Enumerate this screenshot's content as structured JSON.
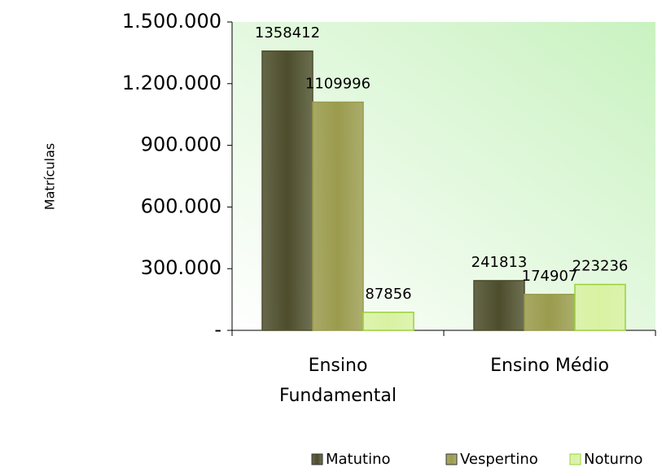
{
  "chart_data": {
    "type": "bar",
    "y_label": "Matrículas",
    "categories": [
      "Ensino Fundamental",
      "Ensino Médio"
    ],
    "series": [
      {
        "name": "Matutino",
        "color": "#4d4d2c",
        "values": [
          1358412,
          241813
        ]
      },
      {
        "name": "Vespertino",
        "color": "#9b9b4e",
        "values": [
          1109996,
          174907
        ]
      },
      {
        "name": "Noturno",
        "color": "#d9f2a2",
        "values": [
          87856,
          223236
        ]
      }
    ],
    "ylim": [
      0,
      1500000
    ],
    "yticks": [
      {
        "value": 0,
        "label": "-"
      },
      {
        "value": 300000,
        "label": "300.000"
      },
      {
        "value": 600000,
        "label": "600.000"
      },
      {
        "value": 900000,
        "label": "900.000"
      },
      {
        "value": 1200000,
        "label": "1.200.000"
      },
      {
        "value": 1500000,
        "label": "1.500.000"
      }
    ],
    "legend": "bottom"
  }
}
